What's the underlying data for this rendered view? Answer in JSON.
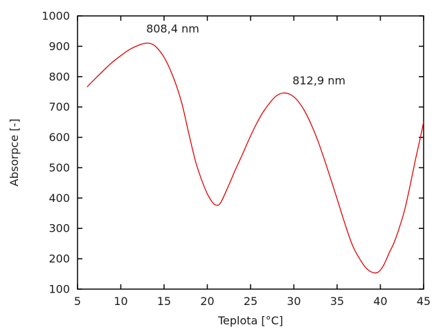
{
  "chart_data": {
    "type": "line",
    "title": "",
    "xlabel": "Teplota [°C]",
    "ylabel": "Absorpce [-]",
    "xlim": [
      5,
      45
    ],
    "ylim": [
      100,
      1000
    ],
    "xticks": [
      5,
      10,
      15,
      20,
      25,
      30,
      35,
      40,
      45
    ],
    "yticks": [
      100,
      200,
      300,
      400,
      500,
      600,
      700,
      800,
      900,
      1000
    ],
    "grid": false,
    "legend": "none",
    "series": [
      {
        "name": "absorpce",
        "points": [
          [
            6.1,
            766
          ],
          [
            7,
            792
          ],
          [
            8,
            820
          ],
          [
            9,
            847
          ],
          [
            10,
            869
          ],
          [
            11,
            889
          ],
          [
            12,
            903
          ],
          [
            12.7,
            909
          ],
          [
            13.3,
            910
          ],
          [
            14,
            900
          ],
          [
            15,
            864
          ],
          [
            16,
            803
          ],
          [
            17,
            718
          ],
          [
            17.8,
            620
          ],
          [
            18.6,
            525
          ],
          [
            19.3,
            463
          ],
          [
            20,
            414
          ],
          [
            20.6,
            386
          ],
          [
            21,
            377
          ],
          [
            21.5,
            383
          ],
          [
            22.4,
            437
          ],
          [
            23.2,
            490
          ],
          [
            24,
            540
          ],
          [
            24.8,
            592
          ],
          [
            25.6,
            640
          ],
          [
            26.4,
            681
          ],
          [
            27.2,
            713
          ],
          [
            28,
            737
          ],
          [
            28.8,
            746
          ],
          [
            29.6,
            741
          ],
          [
            30.4,
            722
          ],
          [
            31.2,
            689
          ],
          [
            32,
            643
          ],
          [
            32.8,
            587
          ],
          [
            33.6,
            521
          ],
          [
            34.4,
            451
          ],
          [
            35.2,
            379
          ],
          [
            36,
            307
          ],
          [
            36.8,
            243
          ],
          [
            37.6,
            200
          ],
          [
            38.4,
            168
          ],
          [
            39.2,
            154
          ],
          [
            39.8,
            157
          ],
          [
            40.4,
            180
          ],
          [
            41,
            218
          ],
          [
            41.6,
            254
          ],
          [
            42.2,
            303
          ],
          [
            42.8,
            360
          ],
          [
            43.4,
            436
          ],
          [
            44,
            519
          ],
          [
            44.6,
            596
          ],
          [
            45,
            651
          ]
        ]
      }
    ],
    "annotations": [
      {
        "text": "808,4 nm",
        "x": 16.0,
        "y": 957
      },
      {
        "text": "812,9 nm",
        "x": 32.9,
        "y": 786
      }
    ]
  },
  "colors": {
    "line": "#e00000",
    "border": "#000000",
    "text": "#1c1c1c",
    "background": "#ffffff"
  }
}
